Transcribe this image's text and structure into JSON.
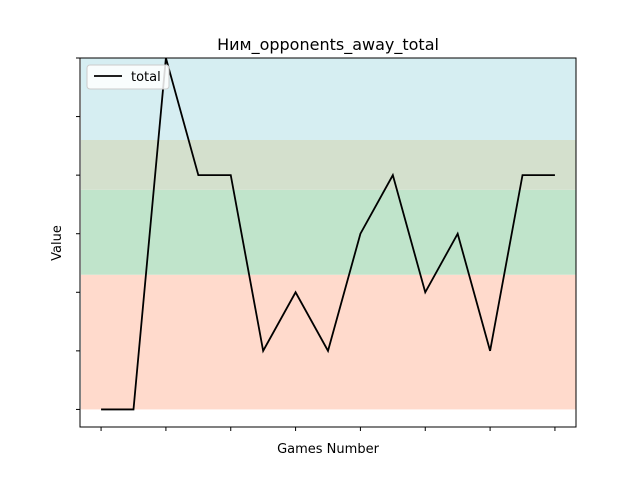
{
  "chart_data": {
    "type": "line",
    "title": "Ним_opponents_away_total",
    "xlabel": "Games Number",
    "ylabel": "Value",
    "x": [
      0,
      1,
      2,
      3,
      4,
      5,
      6,
      7,
      8,
      9,
      10,
      11,
      12,
      13,
      14
    ],
    "xlim": [
      -0.65,
      14.65
    ],
    "ylim": [
      -0.3,
      6.0
    ],
    "x_ticks": [
      0,
      2,
      4,
      6,
      8,
      10,
      12,
      14
    ],
    "y_ticks": [
      0,
      1,
      2,
      3,
      4,
      5,
      6
    ],
    "tick_labels_visible": false,
    "grid": false,
    "legend": {
      "placement": "top-left",
      "entries": [
        "total"
      ]
    },
    "series": [
      {
        "name": "total",
        "color": "#000000",
        "values": [
          0,
          0,
          6,
          4,
          4,
          1,
          2,
          1,
          3,
          4,
          2,
          3,
          1,
          4,
          4
        ]
      }
    ],
    "bands": [
      {
        "from": 0,
        "to": 2.3,
        "color": "#ffdacc"
      },
      {
        "from": 2.3,
        "to": 3.75,
        "color": "#c0e4cb"
      },
      {
        "from": 3.75,
        "to": 4.6,
        "color": "#d4e0cd"
      },
      {
        "from": 4.6,
        "to": 6.0,
        "color": "#d6eef2"
      }
    ]
  }
}
